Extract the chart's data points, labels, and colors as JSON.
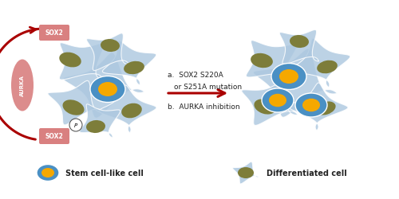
{
  "bg_color": "#ffffff",
  "cell_body_color": "#adc8e0",
  "stem_nucleus_outer_color": "#4a90c4",
  "stem_nucleus_inner_color": "#f5a800",
  "diff_nucleus_color": "#7d7d3a",
  "sox2_box_color": "#d98080",
  "aurka_oval_color": "#d98080",
  "arrow_color": "#aa0000",
  "text_color": "#222222",
  "label_a": "a.  SOX2 S220A",
  "label_a2": "or S251A mutation",
  "label_b": "b.  AURKA inhibition",
  "legend_stem": "Stem cell-like cell",
  "legend_diff": "Differentiated cell",
  "sox2_label": "SOX2",
  "aurka_label": "AURKA",
  "p_label": "P"
}
